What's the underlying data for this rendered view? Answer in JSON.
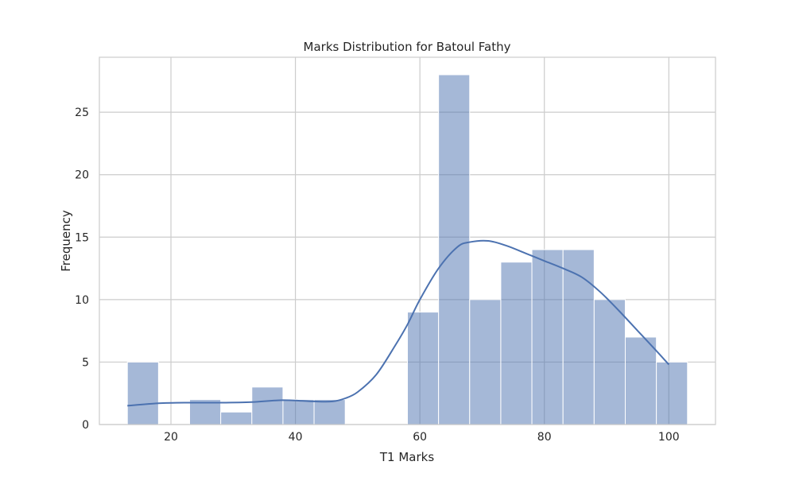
{
  "chart_data": {
    "type": "bar",
    "title": "Marks Distribution for Batoul Fathy",
    "xlabel": "T1 Marks",
    "ylabel": "Frequency",
    "xlim": [
      8.5,
      107.5
    ],
    "ylim": [
      0,
      29.4
    ],
    "xticks": [
      20,
      40,
      60,
      80,
      100
    ],
    "yticks": [
      0,
      5,
      10,
      15,
      20,
      25
    ],
    "grid": true,
    "bins": [
      {
        "start": 13,
        "end": 18,
        "count": 5
      },
      {
        "start": 18,
        "end": 23,
        "count": 0
      },
      {
        "start": 23,
        "end": 28,
        "count": 2
      },
      {
        "start": 28,
        "end": 33,
        "count": 1
      },
      {
        "start": 33,
        "end": 38,
        "count": 3
      },
      {
        "start": 38,
        "end": 43,
        "count": 2
      },
      {
        "start": 43,
        "end": 48,
        "count": 2
      },
      {
        "start": 48,
        "end": 53,
        "count": 0
      },
      {
        "start": 53,
        "end": 58,
        "count": 0
      },
      {
        "start": 58,
        "end": 63,
        "count": 9
      },
      {
        "start": 63,
        "end": 68,
        "count": 28
      },
      {
        "start": 68,
        "end": 73,
        "count": 10
      },
      {
        "start": 73,
        "end": 78,
        "count": 13
      },
      {
        "start": 78,
        "end": 83,
        "count": 14
      },
      {
        "start": 83,
        "end": 88,
        "count": 14
      },
      {
        "start": 88,
        "end": 93,
        "count": 10
      },
      {
        "start": 93,
        "end": 98,
        "count": 7
      },
      {
        "start": 98,
        "end": 103,
        "count": 5
      }
    ],
    "kde": {
      "x": [
        13,
        18,
        23,
        28,
        33,
        38,
        43,
        46,
        48,
        50,
        53,
        56,
        58,
        60,
        63,
        66,
        68,
        71,
        74,
        77,
        80,
        83,
        86,
        89,
        92,
        95,
        98,
        100
      ],
      "y": [
        1.5,
        1.7,
        1.75,
        1.75,
        1.8,
        1.95,
        1.85,
        1.85,
        2.1,
        2.6,
        4.0,
        6.3,
        8.0,
        10.0,
        12.5,
        14.2,
        14.6,
        14.7,
        14.3,
        13.7,
        13.1,
        12.5,
        11.8,
        10.6,
        9.1,
        7.5,
        5.9,
        4.8
      ]
    },
    "colors": {
      "bar_fill": "#4c72b0",
      "bar_opacity": 0.5,
      "bar_edge": "#ffffff",
      "kde_line": "#4c72b0",
      "grid": "#cccccc",
      "axes_edge": "#cccccc"
    }
  }
}
